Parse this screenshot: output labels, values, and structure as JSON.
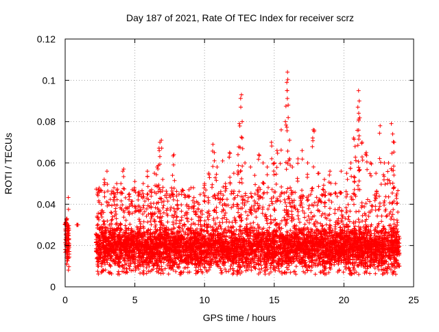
{
  "chart_data": {
    "type": "scatter",
    "title": "Day 187 of 2021, Rate Of TEC Index for receiver scrz",
    "xlabel": "GPS time / hours",
    "ylabel": "ROTI / TECUs",
    "xlim": [
      0,
      25
    ],
    "ylim": [
      0,
      0.12
    ],
    "x_ticks": [
      0,
      5,
      10,
      15,
      20,
      25
    ],
    "y_ticks": [
      0,
      0.02,
      0.04,
      0.06,
      0.08,
      0.1,
      0.12
    ],
    "x_tick_labels": [
      "0",
      "5",
      "10",
      "15",
      "20",
      "25"
    ],
    "y_tick_labels": [
      "0",
      "0.02",
      "0.04",
      "0.06",
      "0.08",
      "0.1",
      "0.12"
    ],
    "grid": true,
    "marker": "plus",
    "colors": {
      "points": "#ff0000",
      "grid": "#a0a0a0",
      "axes": "#000000"
    },
    "coverage": [
      [
        0.0,
        0.3
      ],
      [
        2.2,
        24.0
      ]
    ],
    "typical_range": [
      0.01,
      0.03
    ],
    "series": [
      {
        "name": "",
        "points": [
          [
            0.05,
            0.031
          ],
          [
            0.1,
            0.033
          ],
          [
            0.15,
            0.029
          ],
          [
            0.2,
            0.027
          ],
          [
            0.9,
            0.03
          ],
          [
            2.4,
            0.047
          ],
          [
            2.6,
            0.04
          ],
          [
            2.8,
            0.052
          ],
          [
            3.0,
            0.056
          ],
          [
            3.3,
            0.045
          ],
          [
            3.5,
            0.048
          ],
          [
            3.7,
            0.05
          ],
          [
            4.0,
            0.05
          ],
          [
            4.2,
            0.057
          ],
          [
            4.6,
            0.045
          ],
          [
            5.0,
            0.051
          ],
          [
            5.3,
            0.046
          ],
          [
            5.6,
            0.05
          ],
          [
            5.9,
            0.056
          ],
          [
            6.2,
            0.047
          ],
          [
            6.4,
            0.055
          ],
          [
            6.6,
            0.058
          ],
          [
            6.75,
            0.066
          ],
          [
            6.8,
            0.07
          ],
          [
            6.9,
            0.071
          ],
          [
            7.0,
            0.052
          ],
          [
            7.3,
            0.045
          ],
          [
            7.7,
            0.054
          ],
          [
            7.8,
            0.064
          ],
          [
            8.0,
            0.044
          ],
          [
            8.4,
            0.047
          ],
          [
            8.8,
            0.044
          ],
          [
            9.2,
            0.048
          ],
          [
            9.6,
            0.04
          ],
          [
            10.0,
            0.05
          ],
          [
            10.3,
            0.055
          ],
          [
            10.6,
            0.069
          ],
          [
            10.7,
            0.065
          ],
          [
            10.9,
            0.058
          ],
          [
            11.3,
            0.061
          ],
          [
            11.5,
            0.05
          ],
          [
            11.8,
            0.065
          ],
          [
            12.1,
            0.055
          ],
          [
            12.4,
            0.064
          ],
          [
            12.5,
            0.079
          ],
          [
            12.6,
            0.087
          ],
          [
            12.65,
            0.093
          ],
          [
            12.7,
            0.08
          ],
          [
            12.9,
            0.06
          ],
          [
            13.3,
            0.058
          ],
          [
            13.6,
            0.054
          ],
          [
            13.9,
            0.064
          ],
          [
            14.2,
            0.06
          ],
          [
            14.5,
            0.058
          ],
          [
            14.8,
            0.07
          ],
          [
            15.0,
            0.06
          ],
          [
            15.2,
            0.066
          ],
          [
            15.5,
            0.076
          ],
          [
            15.8,
            0.08
          ],
          [
            15.9,
            0.099
          ],
          [
            15.95,
            0.104
          ],
          [
            16.0,
            0.088
          ],
          [
            16.1,
            0.071
          ],
          [
            16.3,
            0.058
          ],
          [
            16.7,
            0.062
          ],
          [
            17.0,
            0.066
          ],
          [
            17.4,
            0.06
          ],
          [
            17.8,
            0.076
          ],
          [
            18.2,
            0.055
          ],
          [
            18.6,
            0.052
          ],
          [
            19.0,
            0.056
          ],
          [
            19.4,
            0.05
          ],
          [
            19.8,
            0.056
          ],
          [
            20.2,
            0.055
          ],
          [
            20.5,
            0.06
          ],
          [
            20.7,
            0.072
          ],
          [
            20.8,
            0.068
          ],
          [
            21.0,
            0.087
          ],
          [
            21.05,
            0.095
          ],
          [
            21.1,
            0.09
          ],
          [
            21.3,
            0.07
          ],
          [
            21.6,
            0.065
          ],
          [
            21.9,
            0.06
          ],
          [
            22.3,
            0.055
          ],
          [
            22.6,
            0.078
          ],
          [
            22.9,
            0.06
          ],
          [
            23.2,
            0.06
          ],
          [
            23.4,
            0.079
          ],
          [
            23.5,
            0.074
          ],
          [
            23.6,
            0.07
          ],
          [
            23.8,
            0.045
          ]
        ]
      }
    ]
  }
}
